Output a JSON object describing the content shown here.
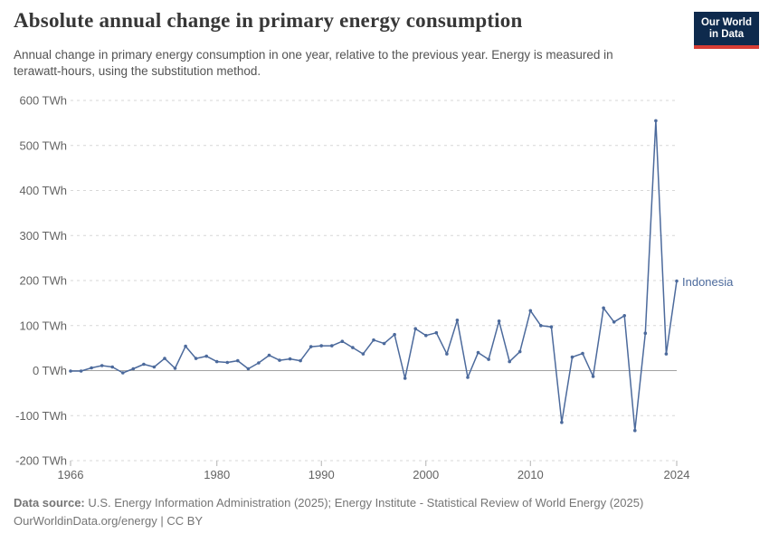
{
  "header": {
    "title": "Absolute annual change in primary energy consumption",
    "subtitle_line1": "Annual change in primary energy consumption in one year, relative to the previous year. Energy is measured in",
    "subtitle_line2": "terawatt-hours, using the substitution method.",
    "logo": {
      "line1": "Our World",
      "line2": "in Data"
    }
  },
  "chart_data": {
    "type": "line",
    "title": "Absolute annual change in primary energy consumption",
    "entity_label": "Indonesia",
    "unit": "TWh",
    "x": [
      1966,
      1967,
      1968,
      1969,
      1970,
      1971,
      1972,
      1973,
      1974,
      1975,
      1976,
      1977,
      1978,
      1979,
      1980,
      1981,
      1982,
      1983,
      1984,
      1985,
      1986,
      1987,
      1988,
      1989,
      1990,
      1991,
      1992,
      1993,
      1994,
      1995,
      1996,
      1997,
      1998,
      1999,
      2000,
      2001,
      2002,
      2003,
      2004,
      2005,
      2006,
      2007,
      2008,
      2009,
      2010,
      2011,
      2012,
      2013,
      2014,
      2015,
      2016,
      2017,
      2018,
      2019,
      2020,
      2021,
      2022,
      2023,
      2024
    ],
    "values": [
      -1,
      -1,
      6,
      11,
      8,
      -5,
      4,
      14,
      8,
      27,
      5,
      54,
      27,
      32,
      20,
      18,
      22,
      4,
      17,
      34,
      23,
      26,
      22,
      53,
      55,
      55,
      65,
      51,
      37,
      68,
      60,
      80,
      -17,
      93,
      78,
      84,
      37,
      112,
      -15,
      40,
      25,
      110,
      20,
      42,
      133,
      100,
      97,
      -115,
      30,
      38,
      -13,
      139,
      108,
      122,
      -133,
      83,
      555,
      37,
      199
    ],
    "ylim": [
      -200,
      600
    ],
    "ytick_step": 100,
    "ytick_suffix": " TWh",
    "xticks": [
      1966,
      1980,
      1990,
      2000,
      2010,
      2024
    ],
    "grid": true,
    "legend_position": "right-of-line-end",
    "line_color": "#4c6a9c",
    "grid_color": "#d7d7d7",
    "zero_line_color": "#a3a3a3",
    "axis_label_color": "#636363"
  },
  "footer": {
    "source_label": "Data source:",
    "source_text": " U.S. Energy Information Administration (2025); Energy Institute - Statistical Review of World Energy (2025)",
    "link_line": "OurWorldinData.org/energy | CC BY"
  }
}
